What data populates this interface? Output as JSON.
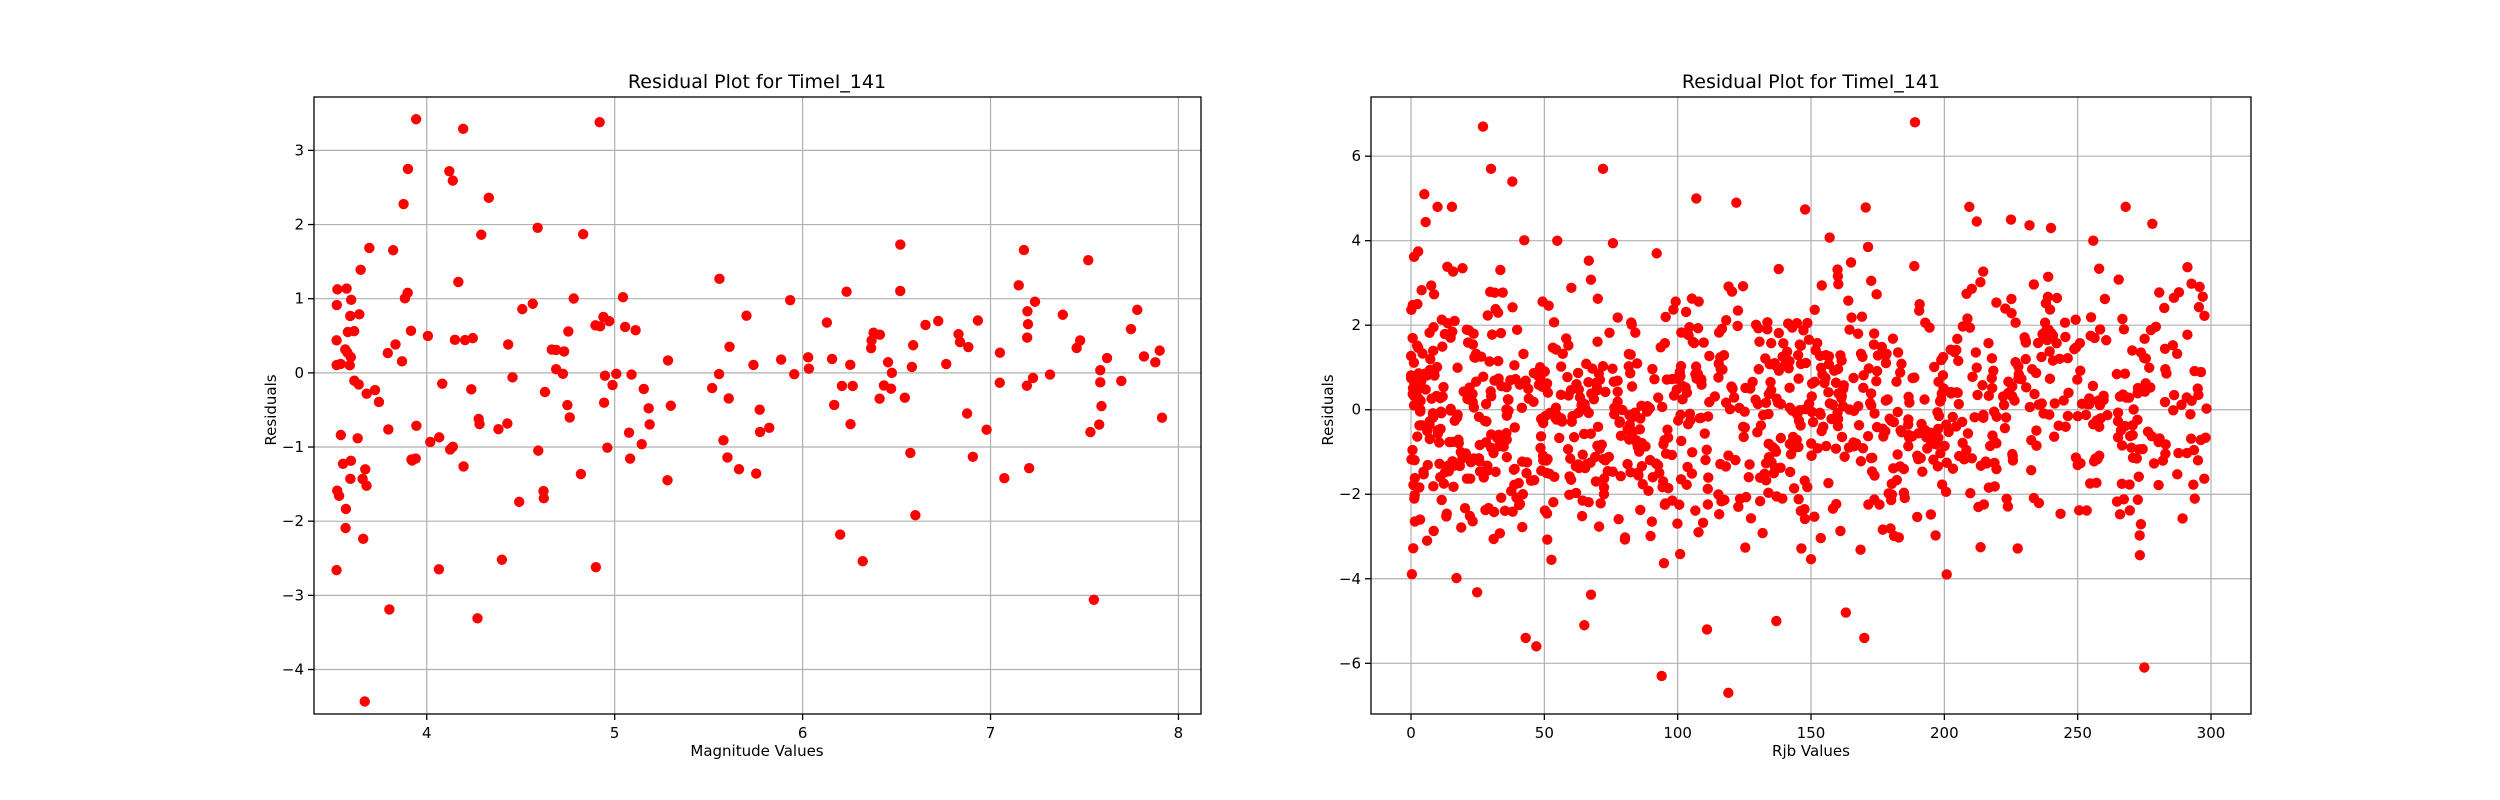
{
  "chart_data": [
    {
      "type": "scatter",
      "title": "Residual Plot for TimeI_141",
      "xlabel": "Magnitude Values",
      "ylabel": "Residuals",
      "xlim": [
        3.4,
        8.12
      ],
      "ylim": [
        -4.6,
        3.72
      ],
      "xticks": [
        4,
        5,
        6,
        7,
        8
      ],
      "yticks": [
        -4,
        -3,
        -2,
        -1,
        0,
        1,
        2,
        3
      ],
      "grid": true,
      "marker_color": "#ff0000",
      "seed": 141,
      "n_points": 190,
      "x_range": [
        3.52,
        7.92
      ],
      "residual_sd": 1.2,
      "outliers": [
        {
          "x": 3.52,
          "y": -2.66
        },
        {
          "x": 3.67,
          "y": -4.43
        },
        {
          "x": 3.9,
          "y": 2.75
        },
        {
          "x": 4.12,
          "y": 2.72
        },
        {
          "x": 4.27,
          "y": -3.31
        },
        {
          "x": 4.92,
          "y": 3.38
        },
        {
          "x": 4.9,
          "y": -2.62
        },
        {
          "x": 4.4,
          "y": -2.52
        },
        {
          "x": 6.2,
          "y": -2.18
        },
        {
          "x": 6.32,
          "y": -2.54
        },
        {
          "x": 6.6,
          "y": -1.92
        },
        {
          "x": 7.55,
          "y": -3.06
        },
        {
          "x": 7.52,
          "y": 1.52
        },
        {
          "x": 7.9,
          "y": 0.3
        },
        {
          "x": 7.62,
          "y": 0.2
        },
        {
          "x": 6.52,
          "y": 1.73
        },
        {
          "x": 7.15,
          "y": 1.18
        },
        {
          "x": 5.6,
          "y": -1.14
        }
      ]
    },
    {
      "type": "scatter",
      "title": "Residual Plot for TimeI_141",
      "xlabel": "Rjb Values",
      "ylabel": "Residuals",
      "xlim": [
        -15,
        315
      ],
      "ylim": [
        -7.2,
        7.4
      ],
      "xticks": [
        0,
        50,
        100,
        150,
        200,
        250,
        300
      ],
      "yticks": [
        -6,
        -4,
        -2,
        0,
        2,
        4,
        6
      ],
      "grid": true,
      "marker_color": "#ff0000",
      "seed": 7,
      "n_points": 1100,
      "x_range": [
        0,
        300
      ],
      "residual_sd": 1.55,
      "outliers": [
        {
          "x": 27,
          "y": 6.7
        },
        {
          "x": 189,
          "y": 6.8
        },
        {
          "x": 30,
          "y": 5.7
        },
        {
          "x": 72,
          "y": 5.7
        },
        {
          "x": 5,
          "y": 5.1
        },
        {
          "x": 38,
          "y": 5.4
        },
        {
          "x": 107,
          "y": 5.0
        },
        {
          "x": 122,
          "y": 4.9
        },
        {
          "x": 94,
          "y": -6.3
        },
        {
          "x": 119,
          "y": -6.7
        },
        {
          "x": 275,
          "y": -6.1
        },
        {
          "x": 47,
          "y": -5.6
        },
        {
          "x": 43,
          "y": -5.4
        },
        {
          "x": 111,
          "y": -5.2
        },
        {
          "x": 170,
          "y": -5.4
        },
        {
          "x": 65,
          "y": -5.1
        },
        {
          "x": 137,
          "y": -5.0
        },
        {
          "x": 268,
          "y": 4.8
        },
        {
          "x": 225,
          "y": 4.5
        },
        {
          "x": 240,
          "y": 4.3
        },
        {
          "x": 278,
          "y": 4.4
        }
      ]
    }
  ]
}
